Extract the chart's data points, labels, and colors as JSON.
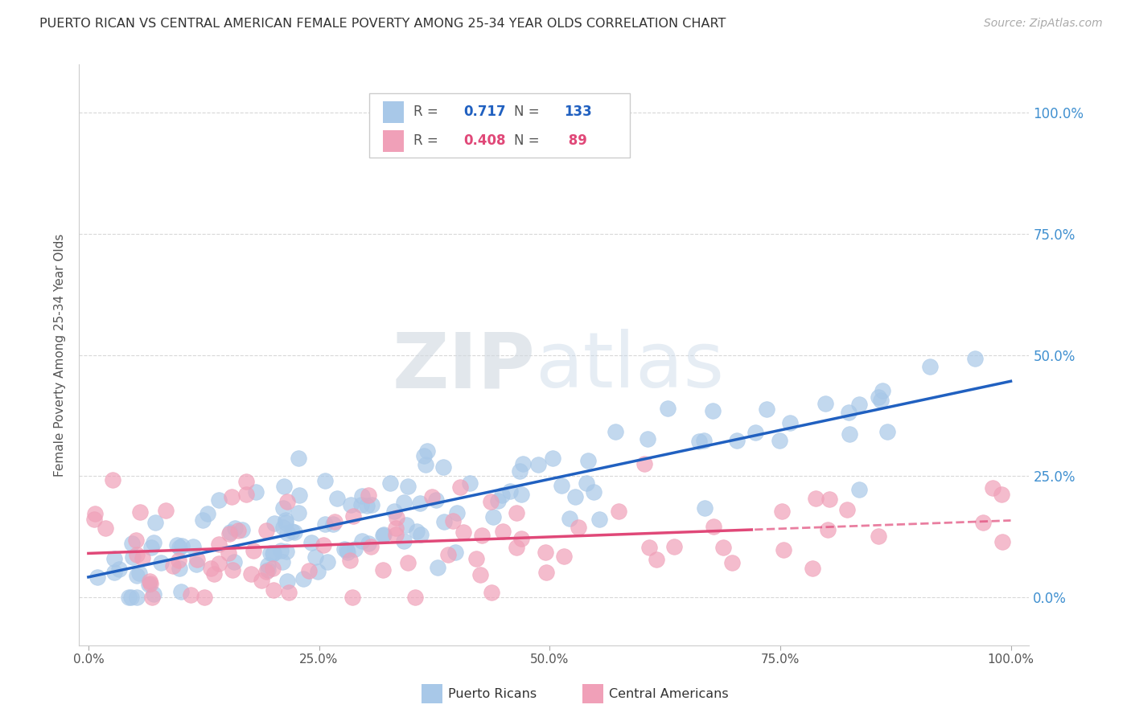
{
  "title": "PUERTO RICAN VS CENTRAL AMERICAN FEMALE POVERTY AMONG 25-34 YEAR OLDS CORRELATION CHART",
  "source": "Source: ZipAtlas.com",
  "ylabel": "Female Poverty Among 25-34 Year Olds",
  "pr_R": 0.717,
  "pr_N": 133,
  "ca_R": 0.408,
  "ca_N": 89,
  "pr_color": "#a8c8e8",
  "ca_color": "#f0a0b8",
  "pr_line_color": "#2060c0",
  "ca_line_color": "#e04878",
  "right_tick_color": "#4090d0",
  "background_color": "#ffffff",
  "grid_color": "#d8d8d8",
  "x_tick_labels": [
    "0.0%",
    "25.0%",
    "50.0%",
    "75.0%",
    "100.0%"
  ],
  "y_tick_labels": [
    "100.0%",
    "75.0%",
    "50.0%",
    "25.0%",
    "0.0%"
  ],
  "pr_legend_label": "Puerto Ricans",
  "ca_legend_label": "Central Americans"
}
